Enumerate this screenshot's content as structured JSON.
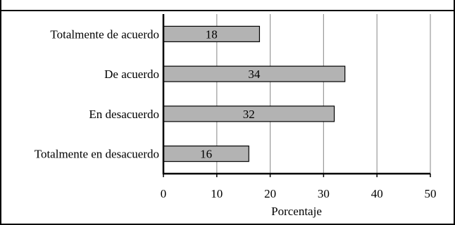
{
  "chart_data": {
    "type": "bar",
    "orientation": "horizontal",
    "title": "",
    "xlabel": "Porcentaje",
    "ylabel": "",
    "xlim": [
      0,
      50
    ],
    "x_ticks": [
      "0",
      "10",
      "20",
      "30",
      "40",
      "50"
    ],
    "grid": true,
    "categories": [
      "Totalmente de acuerdo",
      "De acuerdo",
      "En desacuerdo",
      "Totalmente en desacuerdo"
    ],
    "values": [
      18,
      34,
      32,
      16
    ],
    "data_labels": [
      "18",
      "34",
      "32",
      "16"
    ],
    "bar_color": "#b3b3b3"
  }
}
